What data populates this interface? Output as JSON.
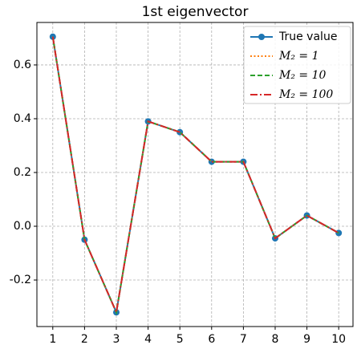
{
  "chart_data": {
    "type": "line",
    "title": "1st eigenvector",
    "x": [
      1,
      2,
      3,
      4,
      5,
      6,
      7,
      8,
      9,
      10
    ],
    "series": [
      {
        "name": "True value",
        "color": "#1f77b4",
        "linestyle": "solid",
        "marker": "circle",
        "values": [
          0.705,
          -0.05,
          -0.32,
          0.39,
          0.35,
          0.24,
          0.24,
          -0.045,
          0.04,
          -0.025
        ]
      },
      {
        "name": "M₂ = 1",
        "color": "#ff7f0e",
        "linestyle": "dotted",
        "marker": "none",
        "values": [
          0.705,
          -0.05,
          -0.32,
          0.39,
          0.35,
          0.24,
          0.24,
          -0.045,
          0.04,
          -0.025
        ]
      },
      {
        "name": "M₂ = 10",
        "color": "#2ca02c",
        "linestyle": "dashed",
        "marker": "none",
        "values": [
          0.705,
          -0.05,
          -0.32,
          0.39,
          0.35,
          0.24,
          0.24,
          -0.045,
          0.04,
          -0.025
        ]
      },
      {
        "name": "M₂ = 100",
        "color": "#d62728",
        "linestyle": "dashdot",
        "marker": "none",
        "values": [
          0.705,
          -0.05,
          -0.32,
          0.39,
          0.35,
          0.24,
          0.24,
          -0.045,
          0.04,
          -0.025
        ]
      }
    ],
    "xlim": [
      0.5,
      10.45
    ],
    "xticks": [
      1,
      2,
      3,
      4,
      5,
      6,
      7,
      8,
      9,
      10
    ],
    "ylim": [
      -0.373,
      0.758
    ],
    "yticks": [
      -0.2,
      {
        "value": 0,
        "label": "0.0"
      },
      0.2,
      0.4,
      0.6
    ],
    "grid": true,
    "legend": "upper right"
  }
}
